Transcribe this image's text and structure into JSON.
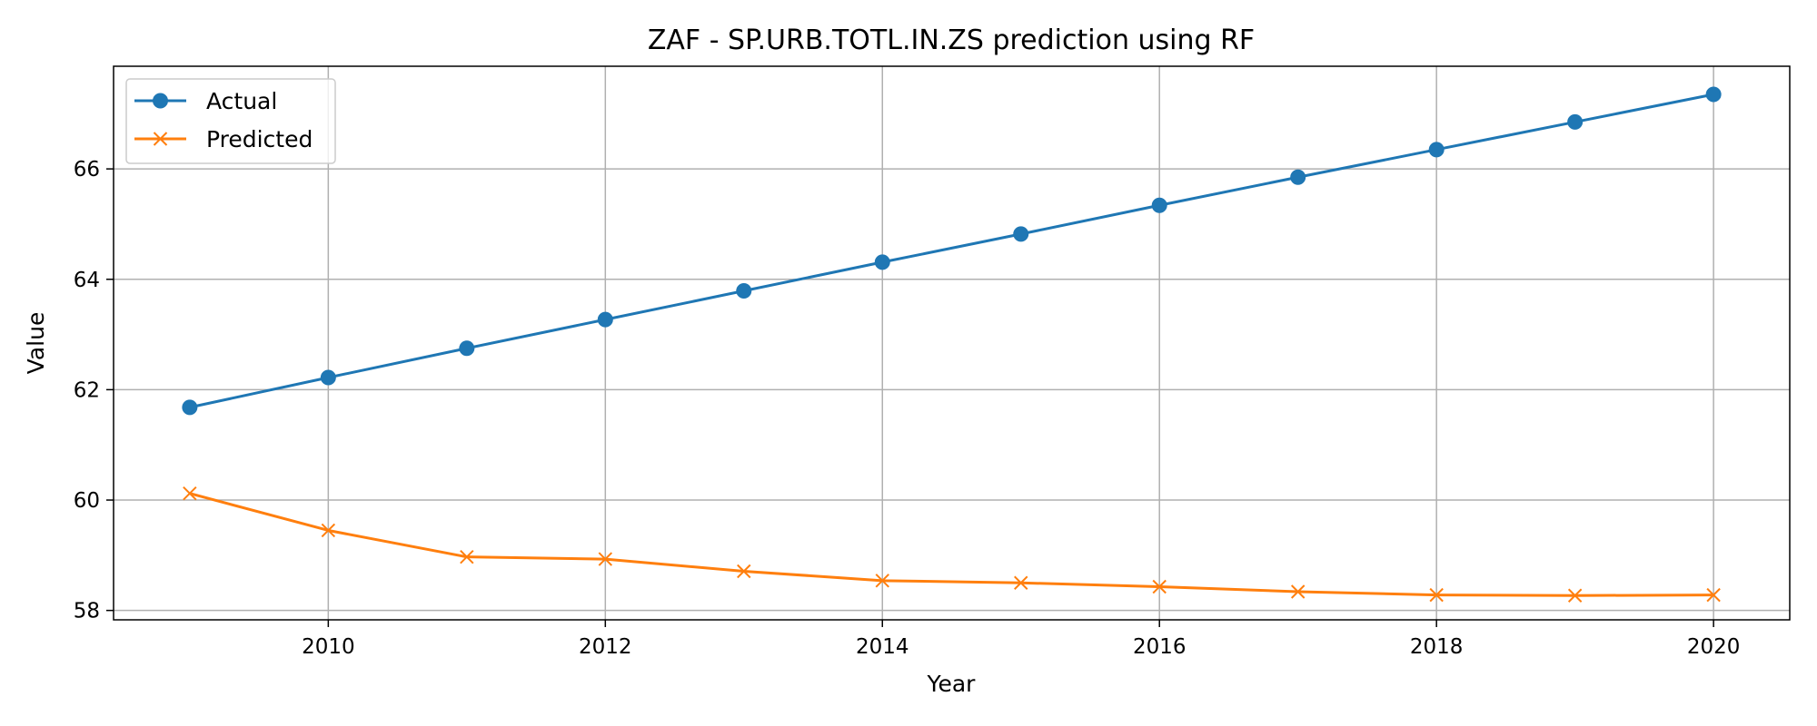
{
  "chart_data": {
    "type": "line",
    "title": "ZAF - SP.URB.TOTL.IN.ZS prediction using RF",
    "xlabel": "Year",
    "ylabel": "Value",
    "x": [
      2009,
      2010,
      2011,
      2012,
      2013,
      2014,
      2015,
      2016,
      2017,
      2018,
      2019,
      2020
    ],
    "xlim": [
      2008.45,
      2020.55
    ],
    "ylim": [
      57.83,
      67.86
    ],
    "x_ticks": [
      2010,
      2012,
      2014,
      2016,
      2018,
      2020
    ],
    "y_ticks": [
      58,
      60,
      62,
      64,
      66
    ],
    "grid": true,
    "legend_position": "upper-left",
    "series": [
      {
        "name": "Actual",
        "color": "#1f77b4",
        "marker": "circle",
        "values": [
          61.68,
          62.22,
          62.75,
          63.27,
          63.79,
          64.31,
          64.82,
          65.34,
          65.85,
          66.35,
          66.85,
          67.35
        ]
      },
      {
        "name": "Predicted",
        "color": "#ff7f0e",
        "marker": "x",
        "values": [
          60.12,
          59.45,
          58.97,
          58.93,
          58.71,
          58.54,
          58.5,
          58.43,
          58.34,
          58.28,
          58.27,
          58.28
        ]
      }
    ]
  }
}
